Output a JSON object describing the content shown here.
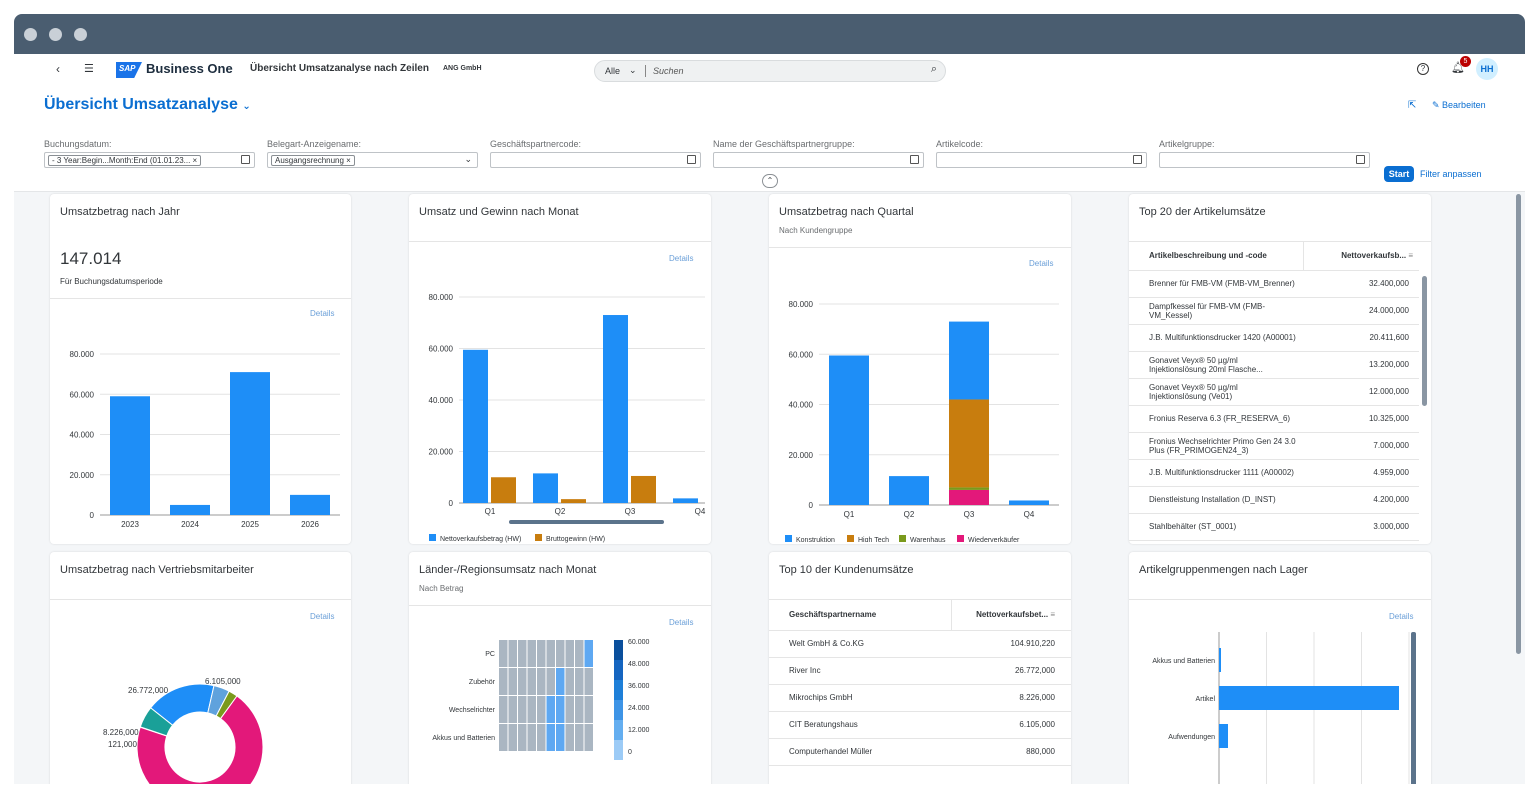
{
  "shell": {
    "product": "Business One",
    "logo": "SAP",
    "app_title": "Übersicht Umsatzanalyse nach Zeilen",
    "company": "ANG GmbH",
    "search_scope": "Alle",
    "search_placeholder": "Suchen",
    "notification_count": "5",
    "avatar_initials": "HH"
  },
  "page": {
    "title": "Übersicht Umsatzanalyse",
    "edit_label": "Bearbeiten"
  },
  "filters": [
    {
      "label": "Buchungsdatum:",
      "token": "- 3 Year:Begin...Month:End (01.01.23..."
    },
    {
      "label": "Belegart-Anzeigename:",
      "token": "Ausgangsrechnung"
    },
    {
      "label": "Geschäftspartnercode:",
      "token": ""
    },
    {
      "label": "Name der Geschäftspartnergruppe:",
      "token": ""
    },
    {
      "label": "Artikelcode:",
      "token": ""
    },
    {
      "label": "Artikelgruppe:",
      "token": ""
    }
  ],
  "filter_actions": {
    "start": "Start",
    "adapt": "Filter anpassen"
  },
  "details_label": "Details",
  "cards": {
    "year": {
      "title": "Umsatzbetrag nach Jahr",
      "kpi": "147.014",
      "kpi_sub": "Für Buchungsdatumsperiode",
      "chart_data": {
        "type": "bar",
        "categories": [
          "2023",
          "2024",
          "2025",
          "2026"
        ],
        "values": [
          59000,
          5000,
          71000,
          10000
        ],
        "yticks": [
          "0",
          "20.000",
          "40.000",
          "60.000",
          "80.000"
        ],
        "ylim": [
          0,
          80000
        ],
        "color": "#1e8ef7"
      }
    },
    "month": {
      "title": "Umsatz und Gewinn nach Monat",
      "chart_data": {
        "type": "bar",
        "categories": [
          "Q1",
          "Q2",
          "Q3",
          "Q4"
        ],
        "series": [
          {
            "name": "Nettoverkaufsbetrag (HW)",
            "color": "#1e8ef7",
            "values": [
              59500,
              11500,
              73000,
              1800
            ]
          },
          {
            "name": "Bruttogewinn (HW)",
            "color": "#c87d0e",
            "values": [
              10000,
              1500,
              10500,
              0
            ]
          }
        ],
        "yticks": [
          "0",
          "20.000",
          "40.000",
          "60.000",
          "80.000"
        ],
        "ylim": [
          0,
          80000
        ]
      }
    },
    "quarter": {
      "title": "Umsatzbetrag nach Quartal",
      "subtitle": "Nach Kundengruppe",
      "chart_data": {
        "type": "bar",
        "categories": [
          "Q1",
          "Q2",
          "Q3",
          "Q4"
        ],
        "series": [
          {
            "name": "Konstruktion",
            "color": "#1e8ef7",
            "values": [
              59500,
              11500,
              31000,
              1800
            ]
          },
          {
            "name": "High Tech",
            "color": "#c87d0e",
            "values": [
              0,
              0,
              35000,
              0
            ]
          },
          {
            "name": "Warenhaus",
            "color": "#7a9a1c",
            "values": [
              0,
              0,
              1000,
              0
            ]
          },
          {
            "name": "Wiederverkäufer",
            "color": "#e3187a",
            "values": [
              0,
              0,
              6000,
              0
            ]
          }
        ],
        "yticks": [
          "0",
          "20.000",
          "40.000",
          "60.000",
          "80.000"
        ],
        "ylim": [
          0,
          80000
        ]
      }
    },
    "top20": {
      "title": "Top 20 der Artikelumsätze",
      "columns": [
        "Artikelbeschreibung und -code",
        "Nettoverkaufsb..."
      ],
      "rows": [
        {
          "name": "Brenner für FMB-VM (FMB-VM_Brenner)",
          "value": "32.400,000"
        },
        {
          "name": "Dampfkessel für FMB-VM (FMB-VM_Kessel)",
          "value": "24.000,000"
        },
        {
          "name": "J.B. Multifunktionsdrucker 1420 (A00001)",
          "value": "20.411,600"
        },
        {
          "name": "Gonavet Veyx® 50 µg/ml Injektionslösung 20ml Flasche...",
          "value": "13.200,000"
        },
        {
          "name": "Gonavet Veyx® 50 µg/ml Injektionslösung (Ve01)",
          "value": "12.000,000"
        },
        {
          "name": "Fronius Reserva 6.3 (FR_RESERVA_6)",
          "value": "10.325,000"
        },
        {
          "name": "Fronius Wechselrichter Primo Gen 24 3.0 Plus (FR_PRIMOGEN24_3)",
          "value": "7.000,000"
        },
        {
          "name": "J.B. Multifunktionsdrucker 1111 (A00002)",
          "value": "4.959,000"
        },
        {
          "name": "Dienstleistung Installation (D_INST)",
          "value": "4.200,000"
        },
        {
          "name": "Stahlbehälter (ST_0001)",
          "value": "3.000,000"
        }
      ]
    },
    "sales_rep": {
      "title": "Umsatzbetrag nach Vertriebsmitarbeiter",
      "chart_data": {
        "type": "pie",
        "labels": [
          "26.772,000",
          "6.105,000",
          "8.226,000",
          "121,000"
        ],
        "slices": [
          {
            "label": "26.772,000",
            "value": 26772,
            "color": "#1e8ef7"
          },
          {
            "label": "6.105,000",
            "value": 6105,
            "color": "#5fa2dd"
          },
          {
            "label": "",
            "value": 3500,
            "color": "#7a9a1c"
          },
          {
            "label": "",
            "value": 104910,
            "color": "#e3187a"
          },
          {
            "label": "121,000",
            "value": 121,
            "color": "#c87d0e"
          },
          {
            "label": "8.226,000",
            "value": 8226,
            "color": "#1aa098"
          }
        ]
      }
    },
    "region": {
      "title": "Länder-/Regionsumsatz nach Monat",
      "subtitle": "Nach Betrag",
      "chart_data": {
        "type": "heatmap",
        "rows": [
          "PC",
          "Zubehör",
          "Wechselrichter",
          "Akkus und Batterien"
        ],
        "legend": [
          "60.000",
          "48.000",
          "36.000",
          "24.000",
          "12.000",
          "0"
        ]
      }
    },
    "top10": {
      "title": "Top 10 der Kundenumsätze",
      "columns": [
        "Geschäftspartnername",
        "Nettoverkaufsbet..."
      ],
      "rows": [
        {
          "name": "Welt GmbH & Co.KG",
          "value": "104.910,220"
        },
        {
          "name": "River Inc",
          "value": "26.772,000"
        },
        {
          "name": "Mikrochips GmbH",
          "value": "8.226,000"
        },
        {
          "name": "CIT Beratungshaus",
          "value": "6.105,000"
        },
        {
          "name": "Computerhandel Müller",
          "value": "880,000"
        }
      ]
    },
    "warehouse": {
      "title": "Artikelgruppenmengen nach Lager",
      "chart_data": {
        "type": "bar",
        "orientation": "horizontal",
        "categories": [
          "Akkus und Batterien",
          "Artikel",
          "Aufwendungen"
        ],
        "values": [
          1,
          100,
          5
        ]
      }
    }
  }
}
